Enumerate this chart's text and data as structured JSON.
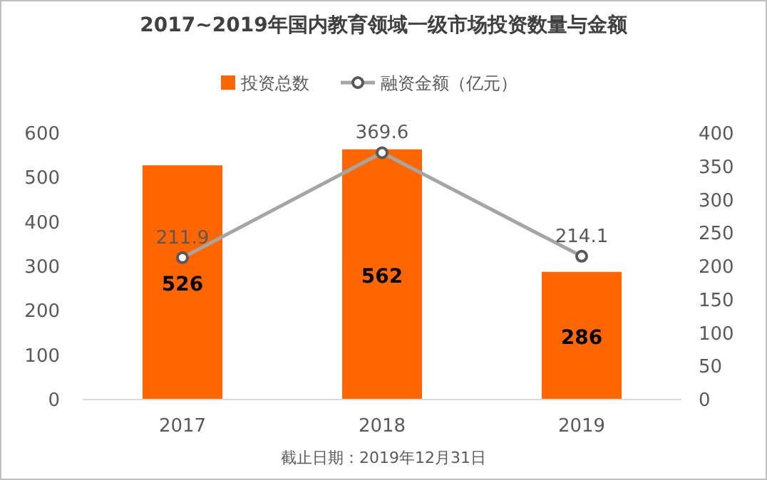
{
  "chart_data": {
    "type": "bar",
    "title": "2017~2019年国内教育领域一级市场投资数量与金额",
    "categories": [
      "2017",
      "2018",
      "2019"
    ],
    "series": [
      {
        "name": "投资总数",
        "color": "#ff6600",
        "values": [
          526,
          562,
          286
        ]
      },
      {
        "name": "融资金额（亿元）",
        "type": "line",
        "axis": "y2",
        "color": "#a5a5a5",
        "marker": "circle",
        "values": [
          211.9,
          369.6,
          214.1
        ]
      }
    ],
    "ylim": [
      0,
      600
    ],
    "yticks": [
      0,
      100,
      200,
      300,
      400,
      500,
      600
    ],
    "y2lim": [
      0,
      400
    ],
    "y2ticks": [
      0,
      50,
      100,
      150,
      200,
      250,
      300,
      350,
      400
    ],
    "data_labels": true,
    "legend": "top",
    "grid": false,
    "annotations": [
      "截止日期：2019年12月31日"
    ]
  }
}
